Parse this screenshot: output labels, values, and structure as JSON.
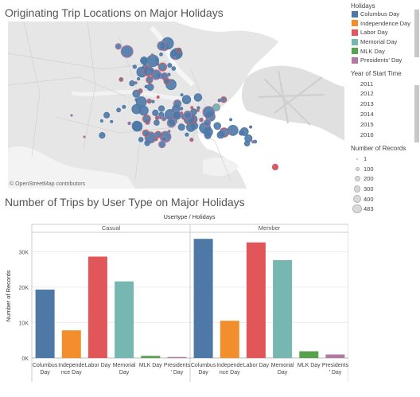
{
  "map": {
    "title": "Originating Trip Locations on Major Holidays",
    "attribution": "© OpenStreetMap contributors"
  },
  "legend": {
    "holidays_title": "Holidays",
    "holidays": [
      {
        "label": "Columbus Day",
        "color": "#4e79a7"
      },
      {
        "label": "Independence Day",
        "color": "#f28e2b"
      },
      {
        "label": "Labor Day",
        "color": "#e15759"
      },
      {
        "label": "Memorial Day",
        "color": "#76b7b2"
      },
      {
        "label": "MLK Day",
        "color": "#59a14f"
      },
      {
        "label": "Presidents' Day",
        "color": "#b07aa1"
      }
    ],
    "years_title": "Year of Start Time",
    "years": [
      "2011",
      "2012",
      "2013",
      "2014",
      "2015",
      "2016"
    ],
    "size_title": "Number of Records",
    "sizes": [
      "1",
      "100",
      "200",
      "300",
      "400",
      "483"
    ]
  },
  "bar": {
    "title": "Number of Trips by User Type on Major Holidays"
  },
  "chart_data": {
    "type": "bar",
    "title": "Number of Trips by User Type on Major Holidays",
    "header": "Usertype / Holidays",
    "ylabel": "Number of Records",
    "ylim": [
      0,
      35000
    ],
    "yticks": [
      0,
      10000,
      20000,
      30000
    ],
    "ytick_labels": [
      "0K",
      "10K",
      "20K",
      "30K"
    ],
    "panels": [
      "Casual",
      "Member"
    ],
    "categories": [
      "Columbus Day",
      "Independence Day",
      "Labor Day",
      "Memorial Day",
      "MLK Day",
      "Presidents' Day"
    ],
    "category_labels": [
      [
        "Columbus",
        "Day"
      ],
      [
        "Independe",
        "nce Day"
      ],
      [
        "Labor Day"
      ],
      [
        "Memorial",
        "Day"
      ],
      [
        "MLK Day"
      ],
      [
        "Presidents",
        "' Day"
      ]
    ],
    "colors": [
      "#4e79a7",
      "#f28e2b",
      "#e15759",
      "#76b7b2",
      "#59a14f",
      "#b07aa1"
    ],
    "series": [
      {
        "name": "Casual",
        "values": [
          19300,
          7800,
          28600,
          21600,
          600,
          300
        ]
      },
      {
        "name": "Member",
        "values": [
          33600,
          10500,
          32600,
          27600,
          1900,
          1000
        ]
      }
    ],
    "grid": true
  }
}
